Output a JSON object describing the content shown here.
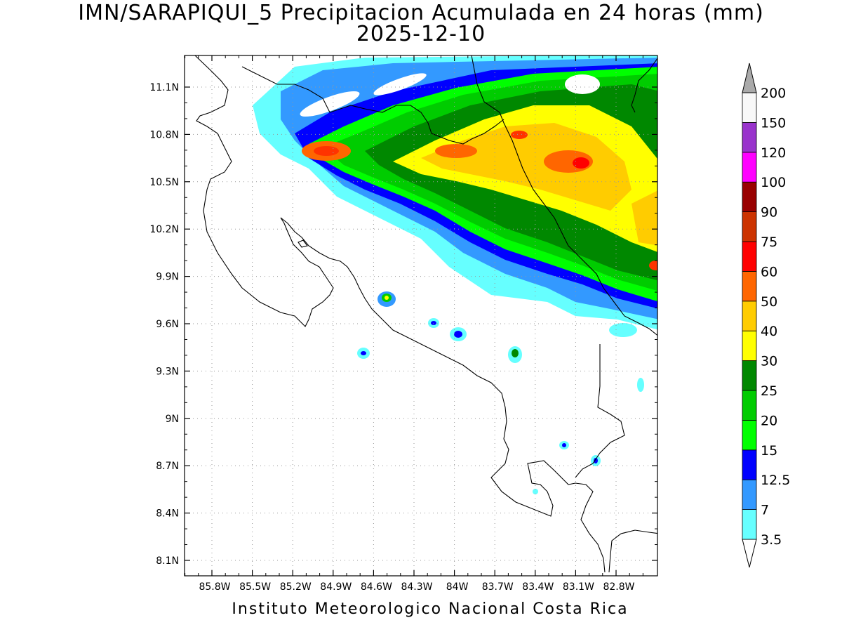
{
  "title": {
    "line1": "IMN/SARAPIQUI_5 Precipitacion Acumulada en 24 horas (mm)",
    "line2": "2025-12-10"
  },
  "credit": "Instituto Meteorologico Nacional Costa Rica",
  "map": {
    "lat_labels": [
      "11.1N",
      "10.8N",
      "10.5N",
      "10.2N",
      "9.9N",
      "9.6N",
      "9.3N",
      "9N",
      "8.7N",
      "8.4N",
      "8.1N"
    ],
    "lon_labels": [
      "85.8W",
      "85.5W",
      "85.2W",
      "84.9W",
      "84.6W",
      "84.3W",
      "84W",
      "83.7W",
      "83.4W",
      "83.1W",
      "82.8W"
    ],
    "grid": "dotted",
    "coastline_color": "#000000"
  },
  "legend": {
    "levels": [
      "3.5",
      "7",
      "12.5",
      "15",
      "20",
      "25",
      "30",
      "40",
      "50",
      "60",
      "75",
      "90",
      "100",
      "120",
      "150",
      "200"
    ],
    "colors": [
      "#66ffff",
      "#3399ff",
      "#0000ff",
      "#00ff00",
      "#00cc00",
      "#008800",
      "#ffff00",
      "#ffcc00",
      "#ff6600",
      "#ff0000",
      "#cc3300",
      "#990000",
      "#ff00ff",
      "#9933cc",
      "#f8f8f8",
      "#aaaaaa"
    ],
    "extend": "both"
  }
}
